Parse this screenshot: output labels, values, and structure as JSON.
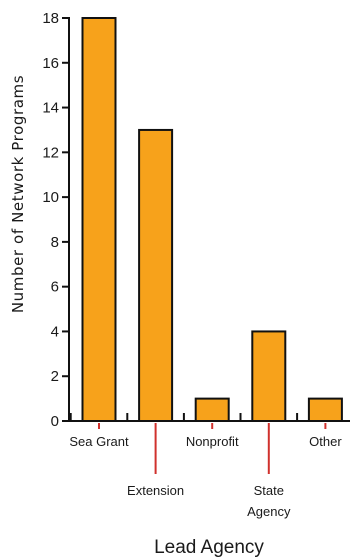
{
  "chart_data": {
    "type": "bar",
    "categories": [
      "Sea Grant",
      "Extension",
      "Nonprofit",
      "State Agency",
      "Other"
    ],
    "category_lines": [
      [
        "Sea Grant"
      ],
      [
        "Extension"
      ],
      [
        "Nonprofit"
      ],
      [
        "State",
        "Agency"
      ],
      [
        "Other"
      ]
    ],
    "values": [
      18,
      13,
      1,
      4,
      1
    ],
    "xlabel": "Lead Agency",
    "ylabel": "Number of Network Programs",
    "ylim": [
      0,
      18
    ],
    "yticks": [
      0,
      2,
      4,
      6,
      8,
      10,
      12,
      14,
      16,
      18
    ],
    "grid": false,
    "colors": {
      "bar": "#F7A21B",
      "bar_edge": "#111111",
      "category_tick": "#D0312D",
      "axis": "#111111"
    }
  }
}
